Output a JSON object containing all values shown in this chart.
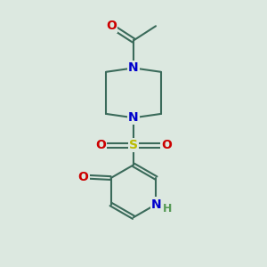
{
  "bg_color": "#dce8e0",
  "bond_color": "#3a6a5a",
  "N_color": "#0000cc",
  "O_color": "#cc0000",
  "S_color": "#bbbb00",
  "H_color": "#559955",
  "bond_width": 1.5,
  "fig_size": [
    3.0,
    3.0
  ],
  "dpi": 100,
  "xlim": [
    0,
    10
  ],
  "ylim": [
    0,
    10
  ],
  "label_fontsize": 9.5
}
